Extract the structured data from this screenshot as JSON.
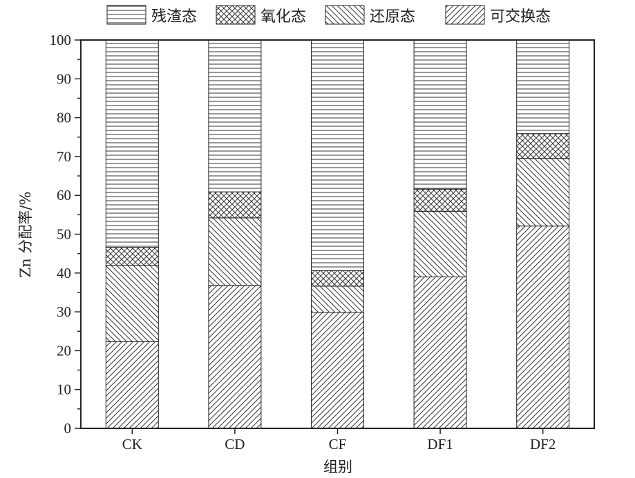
{
  "chart_data": {
    "type": "bar",
    "stacked": true,
    "xlabel": "组别",
    "ylabel": "Zn 分配率/%",
    "ylim": [
      0,
      100
    ],
    "yticks": [
      0,
      10,
      20,
      30,
      40,
      50,
      60,
      70,
      80,
      90,
      100
    ],
    "categories": [
      "CK",
      "CD",
      "CF",
      "DF1",
      "DF2"
    ],
    "legend_position": "top",
    "grid": false,
    "series": [
      {
        "name": "可交换态",
        "pattern": "diagonal-right",
        "values": [
          22.3,
          36.8,
          29.9,
          39.0,
          52.1
        ]
      },
      {
        "name": "还原态",
        "pattern": "diagonal-left",
        "values": [
          19.7,
          17.4,
          6.7,
          16.9,
          17.4
        ]
      },
      {
        "name": "氧化态",
        "pattern": "crosshatch",
        "values": [
          4.6,
          6.7,
          4.0,
          5.7,
          6.4
        ]
      },
      {
        "name": "残渣态",
        "pattern": "horizontal",
        "values": [
          53.4,
          39.1,
          59.4,
          38.4,
          24.1
        ]
      }
    ],
    "legend_order": [
      "残渣态",
      "氧化态",
      "还原态",
      "可交换态"
    ]
  }
}
